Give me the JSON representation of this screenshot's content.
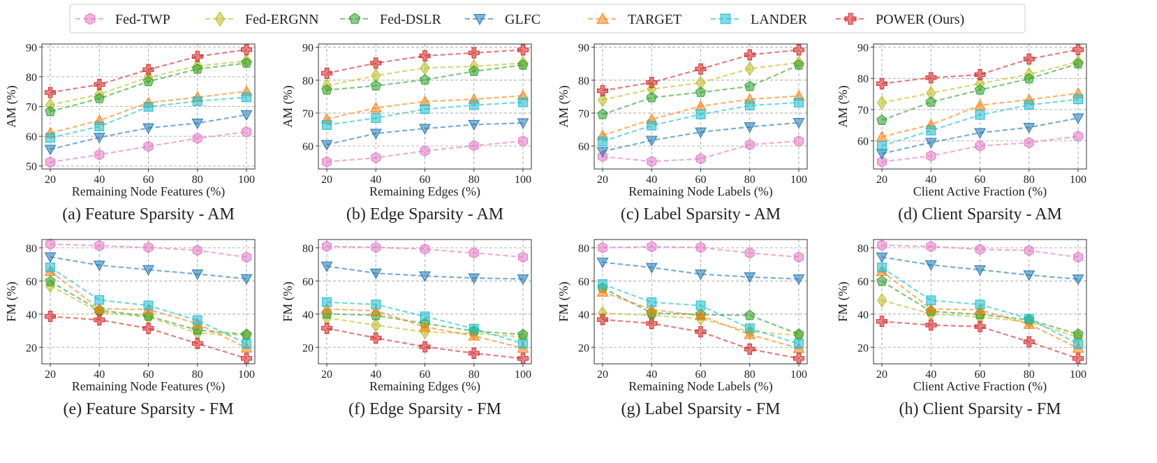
{
  "legend": [
    {
      "name": "Fed-TWP",
      "color": "#e377c2",
      "marker": "hexagon"
    },
    {
      "name": "Fed-ERGNN",
      "color": "#bcbd22",
      "marker": "diamond"
    },
    {
      "name": "Fed-DSLR",
      "color": "#2ca02c",
      "marker": "pentagon"
    },
    {
      "name": "GLFC",
      "color": "#1f77b4",
      "marker": "triangle-down"
    },
    {
      "name": "TARGET",
      "color": "#ff7f0e",
      "marker": "triangle-up"
    },
    {
      "name": "LANDER",
      "color": "#17becf",
      "marker": "square"
    },
    {
      "name": "POWER (Ours)",
      "color": "#d62728",
      "marker": "plus"
    }
  ],
  "chart_data": [
    {
      "type": "line",
      "caption": "(a) Feature Sparsity - AM",
      "xlabel": "Remaining Node Features (%)",
      "ylabel": "AM (%)",
      "x": [
        20,
        40,
        60,
        80,
        100
      ],
      "ylim": [
        49,
        91
      ],
      "yticks": [
        50,
        60,
        70,
        80,
        90
      ],
      "series": [
        {
          "name": "Fed-TWP",
          "values": [
            51.3,
            53.8,
            56.6,
            59.3,
            61.5
          ]
        },
        {
          "name": "Fed-ERGNN",
          "values": [
            70.5,
            74.1,
            79.8,
            83.6,
            85.3
          ]
        },
        {
          "name": "Fed-DSLR",
          "values": [
            68.3,
            72.7,
            78.4,
            82.6,
            84.6
          ]
        },
        {
          "name": "GLFC",
          "values": [
            55.6,
            59.6,
            62.8,
            64.4,
            67.2
          ]
        },
        {
          "name": "TARGET",
          "values": [
            61.1,
            65.3,
            71.3,
            73.1,
            75.1
          ]
        },
        {
          "name": "LANDER",
          "values": [
            59.5,
            63.3,
            69.9,
            71.8,
            73.1
          ]
        },
        {
          "name": "POWER (Ours)",
          "values": [
            74.7,
            77.4,
            82.4,
            86.8,
            89.1
          ]
        }
      ]
    },
    {
      "type": "line",
      "caption": "(b) Edge Sparsity - AM",
      "xlabel": "Remaining Edges (%)",
      "ylabel": "AM (%)",
      "x": [
        20,
        40,
        60,
        80,
        100
      ],
      "ylim": [
        53,
        91
      ],
      "yticks": [
        60,
        70,
        80,
        90
      ],
      "series": [
        {
          "name": "Fed-TWP",
          "values": [
            55.2,
            56.4,
            58.5,
            60.1,
            61.5
          ]
        },
        {
          "name": "Fed-ERGNN",
          "values": [
            78.3,
            81.4,
            83.7,
            84.2,
            85.2
          ]
        },
        {
          "name": "Fed-DSLR",
          "values": [
            77.0,
            78.3,
            80.1,
            82.7,
            84.6
          ]
        },
        {
          "name": "GLFC",
          "values": [
            60.4,
            63.8,
            65.3,
            66.5,
            67.0
          ]
        },
        {
          "name": "TARGET",
          "values": [
            68.2,
            71.6,
            73.5,
            74.2,
            75.3
          ]
        },
        {
          "name": "LANDER",
          "values": [
            66.4,
            68.5,
            71.2,
            72.4,
            73.3
          ]
        },
        {
          "name": "POWER (Ours)",
          "values": [
            82.1,
            85.2,
            87.4,
            88.3,
            89.2
          ]
        }
      ]
    },
    {
      "type": "line",
      "caption": "(c) Label Sparsity - AM",
      "xlabel": "Remaining Node Labels (%)",
      "ylabel": "AM (%)",
      "x": [
        20,
        40,
        60,
        80,
        100
      ],
      "ylim": [
        53,
        91
      ],
      "yticks": [
        60,
        70,
        80,
        90
      ],
      "series": [
        {
          "name": "Fed-TWP",
          "values": [
            56.8,
            55.3,
            56.1,
            60.4,
            61.5
          ]
        },
        {
          "name": "Fed-ERGNN",
          "values": [
            74.0,
            77.3,
            79.2,
            83.5,
            85.3
          ]
        },
        {
          "name": "Fed-DSLR",
          "values": [
            69.6,
            74.7,
            76.3,
            78.1,
            84.6
          ]
        },
        {
          "name": "GLFC",
          "values": [
            58.3,
            61.7,
            64.2,
            65.8,
            67.1
          ]
        },
        {
          "name": "TARGET",
          "values": [
            63.2,
            68.1,
            72.1,
            74.2,
            75.2
          ]
        },
        {
          "name": "LANDER",
          "values": [
            61.4,
            66.2,
            69.6,
            72.3,
            73.2
          ]
        },
        {
          "name": "POWER (Ours)",
          "values": [
            76.8,
            79.3,
            83.4,
            87.7,
            89.2
          ]
        }
      ]
    },
    {
      "type": "line",
      "caption": "(d) Client Sparsity - AM",
      "xlabel": "Client Active Fraction (%)",
      "ylabel": "AM (%)",
      "x": [
        20,
        40,
        60,
        80,
        100
      ],
      "ylim": [
        51,
        91
      ],
      "yticks": [
        60,
        70,
        80,
        90
      ],
      "series": [
        {
          "name": "Fed-TWP",
          "values": [
            53.3,
            55.2,
            58.4,
            59.4,
            61.5
          ]
        },
        {
          "name": "Fed-ERGNN",
          "values": [
            72.2,
            75.3,
            78.3,
            81.3,
            85.3
          ]
        },
        {
          "name": "Fed-DSLR",
          "values": [
            66.6,
            72.4,
            76.3,
            79.9,
            84.7
          ]
        },
        {
          "name": "GLFC",
          "values": [
            55.9,
            59.5,
            62.6,
            64.3,
            67.3
          ]
        },
        {
          "name": "TARGET",
          "values": [
            61.3,
            65.2,
            71.4,
            73.2,
            75.2
          ]
        },
        {
          "name": "LANDER",
          "values": [
            58.4,
            63.3,
            68.3,
            71.5,
            73.3
          ]
        },
        {
          "name": "POWER (Ours)",
          "values": [
            78.3,
            80.2,
            81.2,
            86.2,
            89.2
          ]
        }
      ]
    },
    {
      "type": "line",
      "caption": "(e) Feature Sparsity - FM",
      "xlabel": "Remaining Node Features (%)",
      "ylabel": "FM (%)",
      "x": [
        20,
        40,
        60,
        80,
        100
      ],
      "ylim": [
        10,
        85
      ],
      "yticks": [
        20,
        40,
        60,
        80
      ],
      "series": [
        {
          "name": "Fed-TWP",
          "values": [
            82.2,
            81.3,
            80.2,
            78.5,
            74.3
          ]
        },
        {
          "name": "Fed-ERGNN",
          "values": [
            57.1,
            41.2,
            38.2,
            28.6,
            27.3
          ]
        },
        {
          "name": "Fed-DSLR",
          "values": [
            59.7,
            42.3,
            38.8,
            30.4,
            27.7
          ]
        },
        {
          "name": "GLFC",
          "values": [
            74.5,
            69.5,
            66.8,
            64.2,
            61.3
          ]
        },
        {
          "name": "TARGET",
          "values": [
            65.8,
            43.2,
            42.8,
            34.2,
            19.6
          ]
        },
        {
          "name": "LANDER",
          "values": [
            68.2,
            48.5,
            45.2,
            36.3,
            22.1
          ]
        },
        {
          "name": "POWER (Ours)",
          "values": [
            38.6,
            36.5,
            31.4,
            22.3,
            13.3
          ]
        }
      ]
    },
    {
      "type": "line",
      "caption": "(f) Edge Sparsity - FM",
      "xlabel": "Remaining Edges (%)",
      "ylabel": "FM (%)",
      "x": [
        20,
        40,
        60,
        80,
        100
      ],
      "ylim": [
        10,
        85
      ],
      "yticks": [
        20,
        40,
        60,
        80
      ],
      "series": [
        {
          "name": "Fed-TWP",
          "values": [
            80.9,
            80.3,
            79.2,
            76.9,
            74.4
          ]
        },
        {
          "name": "Fed-ERGNN",
          "values": [
            37.8,
            33.3,
            29.2,
            28.4,
            26.2
          ]
        },
        {
          "name": "Fed-DSLR",
          "values": [
            40.2,
            39.2,
            34.4,
            29.8,
            27.7
          ]
        },
        {
          "name": "GLFC",
          "values": [
            68.9,
            64.7,
            63.0,
            61.8,
            61.2
          ]
        },
        {
          "name": "TARGET",
          "values": [
            43.1,
            42.0,
            32.3,
            26.8,
            19.5
          ]
        },
        {
          "name": "LANDER",
          "values": [
            47.2,
            45.8,
            38.6,
            31.2,
            22.2
          ]
        },
        {
          "name": "POWER (Ours)",
          "values": [
            31.5,
            25.6,
            20.3,
            16.4,
            13.2
          ]
        }
      ]
    },
    {
      "type": "line",
      "caption": "(g) Label Sparsity - FM",
      "xlabel": "Remaining Node Labels (%)",
      "ylabel": "FM (%)",
      "x": [
        20,
        40,
        60,
        80,
        100
      ],
      "ylim": [
        10,
        85
      ],
      "yticks": [
        20,
        40,
        60,
        80
      ],
      "series": [
        {
          "name": "Fed-TWP",
          "values": [
            80.1,
            80.7,
            80.2,
            76.9,
            74.4
          ]
        },
        {
          "name": "Fed-ERGNN",
          "values": [
            40.6,
            39.3,
            37.2,
            29.5,
            27.2
          ]
        },
        {
          "name": "Fed-DSLR",
          "values": [
            55.8,
            40.7,
            39.7,
            39.2,
            27.9
          ]
        },
        {
          "name": "GLFC",
          "values": [
            71.3,
            68.1,
            64.1,
            62.4,
            61.2
          ]
        },
        {
          "name": "TARGET",
          "values": [
            53.3,
            42.8,
            39.1,
            27.7,
            19.4
          ]
        },
        {
          "name": "LANDER",
          "values": [
            58.1,
            47.2,
            45.2,
            31.4,
            22.1
          ]
        },
        {
          "name": "POWER (Ours)",
          "values": [
            36.7,
            34.4,
            29.4,
            18.9,
            13.3
          ]
        }
      ]
    },
    {
      "type": "line",
      "caption": "(h) Client Sparsity - FM",
      "xlabel": "Client Active Fraction (%)",
      "ylabel": "FM (%)",
      "x": [
        20,
        40,
        60,
        80,
        100
      ],
      "ylim": [
        10,
        85
      ],
      "yticks": [
        20,
        40,
        60,
        80
      ],
      "series": [
        {
          "name": "Fed-TWP",
          "values": [
            81.6,
            80.8,
            79.1,
            78.4,
            74.3
          ]
        },
        {
          "name": "Fed-ERGNN",
          "values": [
            48.3,
            40.2,
            38.2,
            35.4,
            26.1
          ]
        },
        {
          "name": "Fed-DSLR",
          "values": [
            59.8,
            41.7,
            39.8,
            36.6,
            27.9
          ]
        },
        {
          "name": "GLFC",
          "values": [
            74.4,
            69.7,
            66.7,
            63.6,
            61.1
          ]
        },
        {
          "name": "TARGET",
          "values": [
            65.8,
            43.1,
            42.6,
            33.9,
            19.5
          ]
        },
        {
          "name": "LANDER",
          "values": [
            68.1,
            48.3,
            45.8,
            37.2,
            22.0
          ]
        },
        {
          "name": "POWER (Ours)",
          "values": [
            35.6,
            33.4,
            32.5,
            23.3,
            13.2
          ]
        }
      ]
    }
  ]
}
